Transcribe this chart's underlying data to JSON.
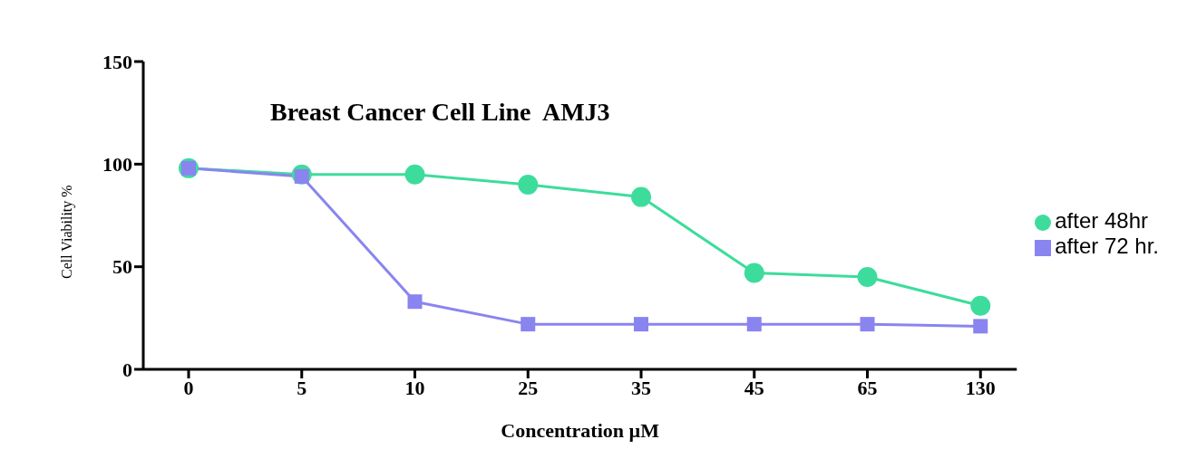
{
  "chart_data": {
    "type": "line",
    "title": "Breast Cancer Cell Line  AMJ3",
    "xlabel": "Concentration µM",
    "ylabel": "Cell Viability %",
    "categories": [
      "0",
      "5",
      "10",
      "25",
      "35",
      "45",
      "65",
      "130"
    ],
    "series": [
      {
        "name": "after 48hr",
        "color": "#3ddc9c",
        "marker": "circle",
        "values": [
          98,
          95,
          95,
          90,
          84,
          47,
          45,
          31
        ]
      },
      {
        "name": "after 72 hr.",
        "color": "#8a84f0",
        "marker": "square",
        "values": [
          98,
          94,
          33,
          22,
          22,
          22,
          22,
          21
        ]
      }
    ],
    "ylim": [
      0,
      150
    ],
    "yticks": [
      0,
      50,
      100,
      150
    ],
    "grid": false,
    "legend": "right",
    "line_style": "solid"
  }
}
